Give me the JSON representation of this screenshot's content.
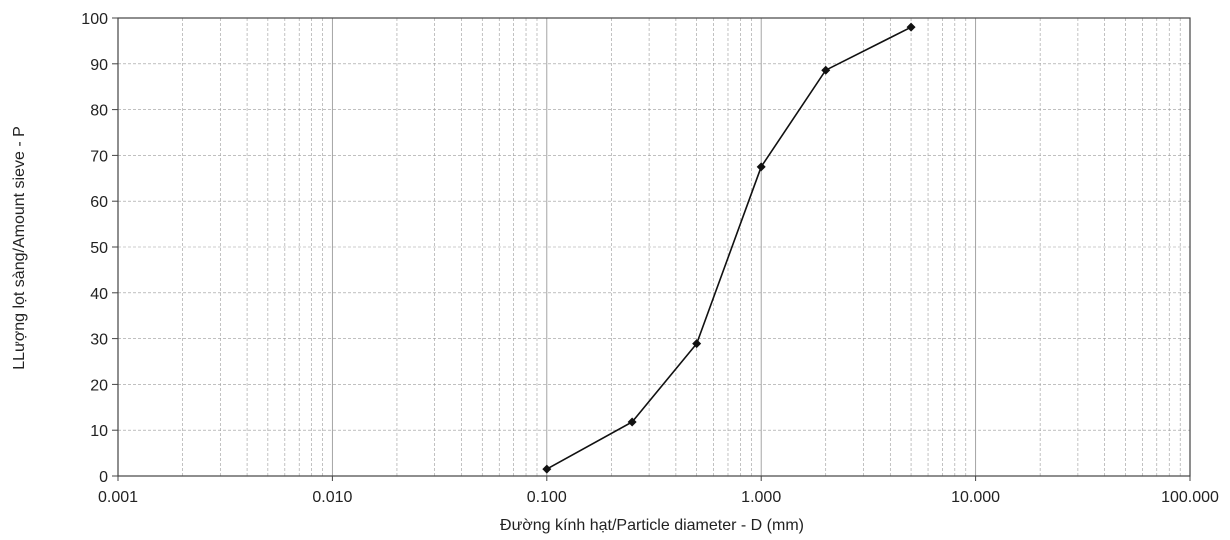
{
  "chart_data": {
    "type": "line",
    "title": "",
    "xlabel": "Đường kính hạt/Particle diameter - D (mm)",
    "ylabel": "LLượng lọt sàng/Amount sieve - P",
    "x_scale": "log",
    "xlim": [
      0.001,
      100
    ],
    "ylim": [
      0,
      100
    ],
    "x_ticks": [
      "0.001",
      "0.010",
      "0.100",
      "1.000",
      "10.000",
      "100.000"
    ],
    "y_ticks": [
      "0",
      "10",
      "20",
      "30",
      "40",
      "50",
      "60",
      "70",
      "80",
      "90",
      "100"
    ],
    "grid": true,
    "legend": "none",
    "series": [
      {
        "x": [
          0.1,
          0.25,
          0.5,
          1.0,
          2.0,
          5.0
        ],
        "y": [
          1.5,
          11.8,
          28.9,
          67.5,
          88.6,
          98.0
        ]
      }
    ]
  },
  "colors": {
    "line": "#111111",
    "marker": "#111111",
    "grid": "#9a9a9a",
    "frame": "#444444"
  }
}
